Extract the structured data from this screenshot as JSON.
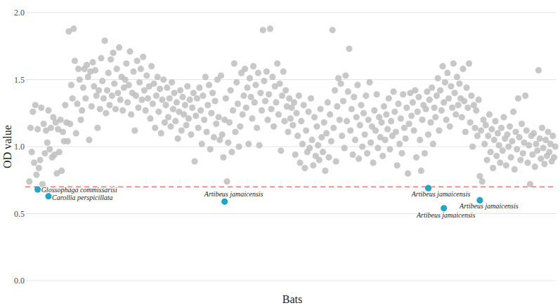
{
  "chart_data": {
    "type": "scatter",
    "x_label": "Bats",
    "y_label": "OD value",
    "xlim": [
      0,
      441
    ],
    "ylim": [
      0,
      2
    ],
    "yticks": [
      {
        "value": 0,
        "label": "0.0"
      },
      0.5,
      {
        "value": 1,
        "label": "1.0"
      },
      1.5,
      {
        "value": 2,
        "label": "2.0"
      }
    ],
    "tick_labels": "y",
    "grid": true,
    "threshold": 0.7,
    "series": [
      {
        "color": "#bebebe",
        "marker": "circle",
        "x": [
          1,
          2,
          3,
          4,
          5,
          6,
          7,
          8,
          9,
          10,
          11,
          12,
          13,
          14,
          15,
          16,
          17,
          18,
          19,
          20,
          21,
          22,
          23,
          24,
          25,
          26,
          27,
          28,
          29,
          30,
          31,
          32,
          33,
          34,
          35,
          36,
          37,
          38,
          39,
          40,
          41,
          42,
          43,
          44,
          45,
          46,
          47,
          48,
          49,
          50,
          51,
          52,
          53,
          54,
          55,
          56,
          57,
          58,
          59,
          60,
          61,
          62,
          63,
          64,
          65,
          66,
          67,
          68,
          69,
          70,
          71,
          72,
          73,
          74,
          75,
          76,
          77,
          78,
          79,
          80,
          81,
          82,
          83,
          84,
          85,
          86,
          87,
          88,
          89,
          90,
          91,
          92,
          93,
          94,
          95,
          96,
          97,
          98,
          99,
          100,
          101,
          102,
          103,
          104,
          105,
          106,
          107,
          108,
          109,
          110,
          111,
          112,
          113,
          114,
          115,
          116,
          117,
          118,
          119,
          120,
          121,
          122,
          123,
          124,
          125,
          126,
          127,
          128,
          129,
          130,
          131,
          132,
          133,
          134,
          135,
          136,
          137,
          138,
          139,
          140,
          141,
          142,
          143,
          144,
          145,
          146,
          147,
          148,
          149,
          150,
          151,
          152,
          153,
          154,
          155,
          156,
          157,
          158,
          159,
          160,
          161,
          162,
          163,
          164,
          165,
          166,
          167,
          168,
          169,
          170,
          171,
          172,
          173,
          174,
          175,
          176,
          177,
          178,
          179,
          180,
          181,
          182,
          183,
          184,
          185,
          186,
          187,
          188,
          189,
          190,
          191,
          192,
          193,
          194,
          195,
          196,
          197,
          198,
          199,
          200,
          201,
          202,
          203,
          204,
          205,
          206,
          207,
          208,
          209,
          210,
          211,
          212,
          213,
          214,
          215,
          216,
          217,
          218,
          219,
          220,
          221,
          222,
          223,
          224,
          225,
          226,
          227,
          228,
          229,
          230,
          231,
          232,
          233,
          234,
          235,
          236,
          237,
          238,
          239,
          240,
          241,
          242,
          243,
          244,
          245,
          246,
          247,
          248,
          249,
          250,
          251,
          252,
          253,
          254,
          255,
          256,
          257,
          258,
          259,
          260,
          261,
          262,
          263,
          264,
          265,
          266,
          267,
          268,
          269,
          270,
          271,
          272,
          273,
          274,
          275,
          276,
          277,
          278,
          279,
          280,
          281,
          282,
          283,
          284,
          285,
          286,
          287,
          288,
          289,
          290,
          291,
          292,
          293,
          294,
          295,
          296,
          297,
          298,
          299,
          300,
          301,
          302,
          303,
          304,
          305,
          306,
          307,
          308,
          309,
          310,
          311,
          312,
          313,
          314,
          315,
          316,
          317,
          318,
          319,
          320,
          321,
          322,
          323,
          324,
          325,
          326,
          327,
          328,
          329,
          330,
          331,
          332,
          333,
          334,
          335,
          336,
          337,
          338,
          339,
          340,
          341,
          342,
          343,
          344,
          345,
          346,
          347,
          348,
          349,
          350,
          351,
          352,
          353,
          354,
          355,
          356,
          357,
          358,
          359,
          360,
          361,
          362,
          363,
          364,
          365,
          366,
          367,
          368,
          369,
          370,
          371,
          372,
          373,
          374,
          375,
          376,
          377,
          378,
          379,
          380,
          381,
          382,
          383,
          384,
          385,
          386,
          387,
          388,
          389,
          390,
          391,
          392,
          393,
          394,
          395,
          396,
          397,
          398,
          399,
          400,
          401,
          402,
          403,
          404,
          405,
          406,
          407,
          408,
          409,
          410,
          411,
          412,
          413,
          414,
          415,
          416,
          417,
          418,
          419,
          420,
          421,
          422,
          423,
          424,
          425,
          426,
          427,
          428,
          429,
          430,
          431,
          432,
          433,
          434,
          435,
          436,
          437,
          438,
          439,
          440
        ],
        "values": [
          0.74,
          1.14,
          0.96,
          1.26,
          0.88,
          1.31,
          0.79,
          1.13,
          0.84,
          0.9,
          1.29,
          0.72,
          1.17,
          0.95,
          1.12,
          1.03,
          1.27,
          0.98,
          1.14,
          0.92,
          1.22,
          0.94,
          1.18,
          0.8,
          1.13,
          0.96,
          1.2,
          0.82,
          1.11,
          1.04,
          1.31,
          1.18,
          1.04,
          1.86,
          1.17,
          1.46,
          1.36,
          1.88,
          1.64,
          1.1,
          1.32,
          1.58,
          1.5,
          1.2,
          1.27,
          1.44,
          1.58,
          1.36,
          1.61,
          1.52,
          1.05,
          1.56,
          1.3,
          1.63,
          1.45,
          1.57,
          1.38,
          1.14,
          1.42,
          1.28,
          1.66,
          1.49,
          1.36,
          1.79,
          1.25,
          1.42,
          1.55,
          1.31,
          1.65,
          1.38,
          1.7,
          1.47,
          1.28,
          1.58,
          1.4,
          1.74,
          1.35,
          1.52,
          1.27,
          1.44,
          1.5,
          1.62,
          1.33,
          1.46,
          1.71,
          1.24,
          1.4,
          1.56,
          1.12,
          1.38,
          1.64,
          1.29,
          1.48,
          1.58,
          1.35,
          1.67,
          1.42,
          1.27,
          1.53,
          1.36,
          1.45,
          1.21,
          1.6,
          1.32,
          1.47,
          1.14,
          1.38,
          1.52,
          1.26,
          1.43,
          1.1,
          1.35,
          1.5,
          1.18,
          1.31,
          1.44,
          1.22,
          1.36,
          1.15,
          1.48,
          1.28,
          1.4,
          1.19,
          1.33,
          1.06,
          1.26,
          1.42,
          1.12,
          1.37,
          1.24,
          1.31,
          1.16,
          1.45,
          1.21,
          1.35,
          1.09,
          1.29,
          1.4,
          0.89,
          1.23,
          1.36,
          1.14,
          1.44,
          1.27,
          1.02,
          1.38,
          1.2,
          1.52,
          1.11,
          1.31,
          1.46,
          0.98,
          1.25,
          1.4,
          1.07,
          1.34,
          1.17,
          1.5,
          1.22,
          1.05,
          1.53,
          1.09,
          0.92,
          1.2,
          1.36,
          0.74,
          1.03,
          1.18,
          1.42,
          0.96,
          1.27,
          1.62,
          1.11,
          1.48,
          1.32,
          1.0,
          1.15,
          1.55,
          1.24,
          1.38,
          1.58,
          1.29,
          1.44,
          1.02,
          1.51,
          1.37,
          1.21,
          1.6,
          1.33,
          1.46,
          1.14,
          1.55,
          1.01,
          1.4,
          1.27,
          1.87,
          1.49,
          1.34,
          1.56,
          1.2,
          1.39,
          1.88,
          1.28,
          1.52,
          1.15,
          1.45,
          1.33,
          1.62,
          1.24,
          1.47,
          0.97,
          1.38,
          1.56,
          1.19,
          1.42,
          1.3,
          1.11,
          1.36,
          1.21,
          1.29,
          1.16,
          1.33,
          0.94,
          1.25,
          1.08,
          1.38,
          0.88,
          1.19,
          1.02,
          1.31,
          0.84,
          1.12,
          0.96,
          1.26,
          0.99,
          1.36,
          1.05,
          0.86,
          1.22,
          0.93,
          1.15,
          1.01,
          0.9,
          1.28,
          1.07,
          0.96,
          1.18,
          0.82,
          1.1,
          1.33,
          0.92,
          1.24,
          1.04,
          1.87,
          1.14,
          1.42,
          0.89,
          1.3,
          1.51,
          1.2,
          1.47,
          1.08,
          1.34,
          0.99,
          1.53,
          1.19,
          1.41,
          1.73,
          1.12,
          1.28,
          0.94,
          1.37,
          1.05,
          1.22,
          1.46,
          0.91,
          1.16,
          1.31,
          1.0,
          1.25,
          1.09,
          1.38,
          0.95,
          1.2,
          1.48,
          1.03,
          1.15,
          0.88,
          1.27,
          1.12,
          1.39,
          0.99,
          1.22,
          1.07,
          1.18,
          0.93,
          1.3,
          1.05,
          1.24,
          1.13,
          1.36,
          0.98,
          1.19,
          1.08,
          1.41,
          1.26,
          1.11,
          0.86,
          1.32,
          1.02,
          1.21,
          0.95,
          1.39,
          1.14,
          1.06,
          1.29,
          0.8,
          1.17,
          1.4,
          1.23,
          1.33,
          1.12,
          1.42,
          0.92,
          1.26,
          1.37,
          1.05,
          0.82,
          1.2,
          1.31,
          0.95,
          1.28,
          1.41,
          1.09,
          1.35,
          1.18,
          1.44,
          1.02,
          1.29,
          1.22,
          1.38,
          1.51,
          1.12,
          1.42,
          1.27,
          1.6,
          1.33,
          1.48,
          1.2,
          1.55,
          1.36,
          1.15,
          1.45,
          1.29,
          1.62,
          1.4,
          1.24,
          1.52,
          1.31,
          1.47,
          1.36,
          1.22,
          1.58,
          1.34,
          1.11,
          1.44,
          1.29,
          1.62,
          1.18,
          1.38,
          1.0,
          1.31,
          1.14,
          1.27,
          1.08,
          1.35,
          0.78,
          1.12,
          0.74,
          1.2,
          1.02,
          1.16,
          0.9,
          1.08,
          1.24,
          0.96,
          1.13,
          0.84,
          1.05,
          1.19,
          0.93,
          1.1,
          1.01,
          0.88,
          1.14,
          0.97,
          1.22,
          1.06,
          0.86,
          1.09,
          1.0,
          1.15,
          0.92,
          1.04,
          1.26,
          0.83,
          1.11,
          0.98,
          1.36,
          1.07,
          0.9,
          1.17,
          0.95,
          1.03,
          1.38,
          1.12,
          0.88,
          1.01,
          0.72,
          1.08,
          0.94,
          1.1,
          0.85,
          1.02,
          0.97,
          1.57,
          1.06,
          0.91,
          1.14,
          0.99,
          0.87,
          1.05,
          0.93,
          1.11,
          0.96,
          1.02,
          0.89,
          1.08,
          0.92,
          1.0
        ]
      },
      {
        "color": "#1fa6c9",
        "marker": "circle",
        "x": [
          8,
          17,
          164,
          334,
          347,
          377
        ],
        "values": [
          0.68,
          0.63,
          0.59,
          0.69,
          0.54,
          0.6
        ],
        "labels": [
          "Glossophaga commissarisi",
          "Carollia perspicillata",
          "Artibeus jamaicensis",
          "Artibeus jamaicensis",
          "Artibeus jamaicensis",
          "Artibeus jamaicensis"
        ]
      }
    ]
  }
}
